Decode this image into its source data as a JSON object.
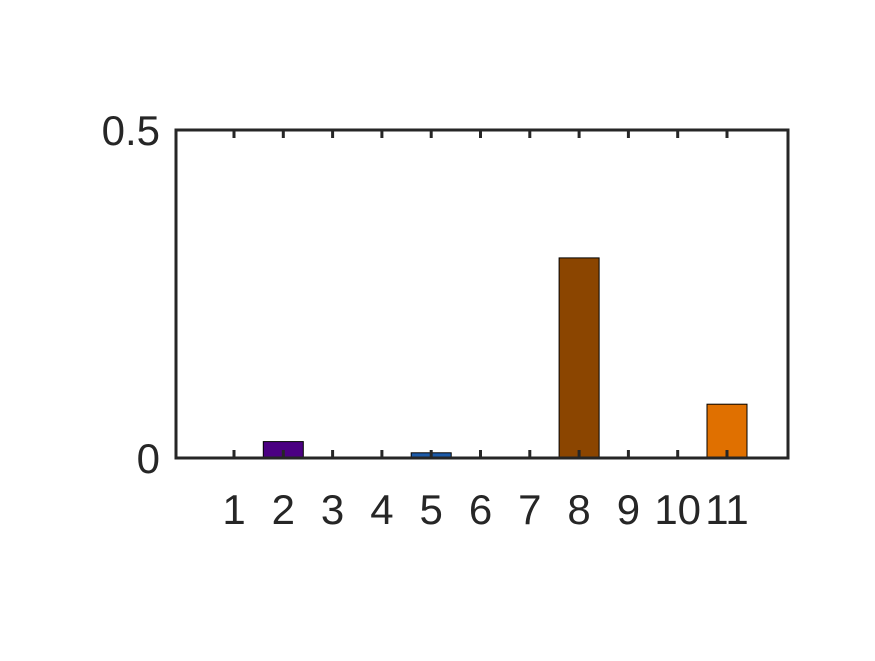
{
  "chart_data": {
    "type": "bar",
    "title": "",
    "xlabel": "",
    "ylabel": "",
    "categories": [
      "1",
      "2",
      "3",
      "4",
      "5",
      "6",
      "7",
      "8",
      "9",
      "10",
      "11"
    ],
    "values": [
      0,
      0.025,
      0,
      0,
      0.008,
      0,
      0,
      0.305,
      0,
      0,
      0.082
    ],
    "bar_colors": [
      "#4B0082",
      "#4B0082",
      "#1C5AA8",
      "#1C5AA8",
      "#1C5AA8",
      "#1C5AA8",
      "#8B4500",
      "#8B4500",
      "#E07000",
      "#E07000",
      "#E07000"
    ],
    "ylim": [
      0,
      0.5
    ],
    "yticks": [
      0,
      0.5
    ],
    "ytick_labels": [
      "0",
      "0.5"
    ],
    "grid": false,
    "legend": false,
    "axis_color": "#262626"
  }
}
